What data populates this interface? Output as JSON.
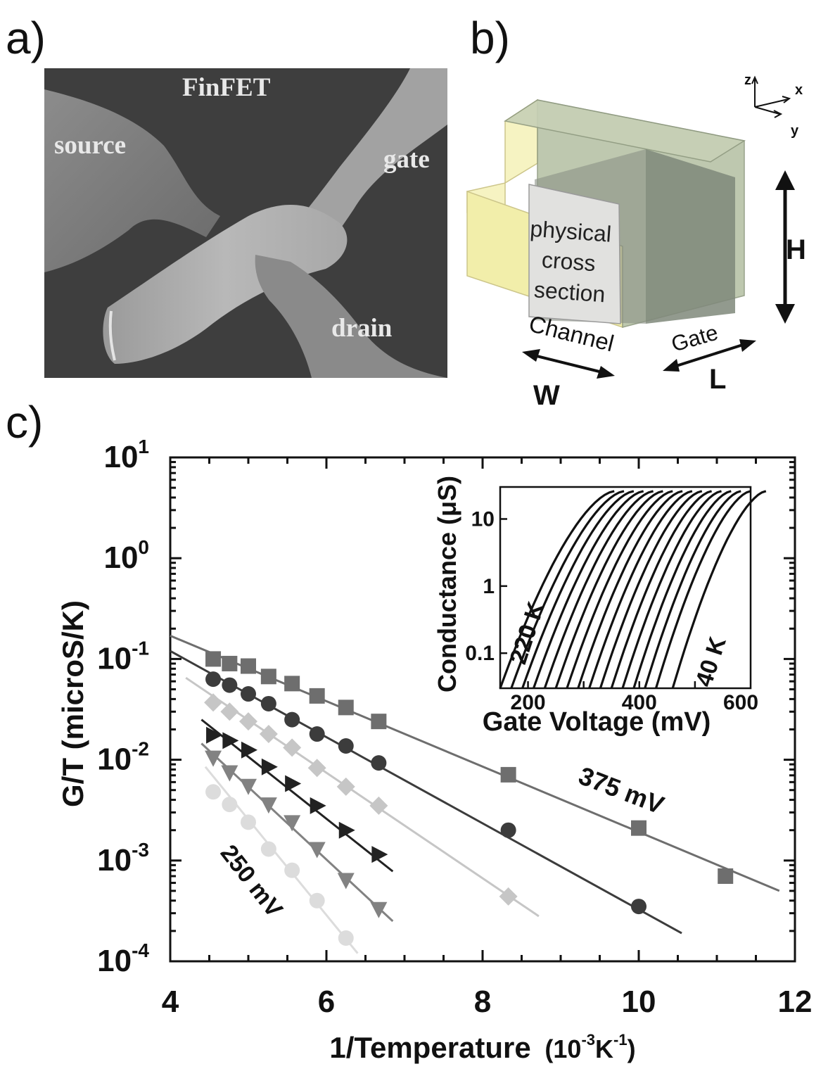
{
  "panels": {
    "a": {
      "label": "a)",
      "title": "FinFET",
      "labels": {
        "source": "source",
        "gate": "gate",
        "drain": "drain"
      }
    },
    "b": {
      "label": "b)",
      "axes": {
        "z": "z",
        "x": "x",
        "y": "y"
      },
      "cross_section": [
        "physical",
        "cross",
        "section"
      ],
      "channel": "Channel",
      "gate": "Gate",
      "dims": {
        "H": "H",
        "W": "W",
        "L": "L"
      }
    },
    "c": {
      "label": "c)"
    }
  },
  "colors": {
    "s375": "#6e6e6e",
    "s_circle": "#3c3c3c",
    "s_diamond": "#c6c6c6",
    "s_triangle_right": "#222222",
    "s_triangle_down": "#828282",
    "s250": "#dcdcdc",
    "yellow_face": "#f3efb4",
    "green_face": "#b9c4a9",
    "sem_bg": "#3c3c3c"
  },
  "chart_data": [
    {
      "type": "scatter",
      "xlabel": "1/Temperature",
      "xunit_base": "(10",
      "xunit_exp1": "-3",
      "xunit_mid": "K",
      "xunit_exp2": "-1",
      "xunit_end": ")",
      "ylabel": "G/T (microS/K)",
      "xlim": [
        4,
        12
      ],
      "ylim": [
        0.0001,
        10
      ],
      "yscale": "log",
      "xticks": [
        4,
        6,
        8,
        10,
        12
      ],
      "xtick_labels": [
        "4",
        "6",
        "8",
        "10",
        "12"
      ],
      "yticks": [
        {
          "base": "10",
          "exp": "1",
          "value": 10
        },
        {
          "base": "10",
          "exp": "0",
          "value": 1
        },
        {
          "base": "10",
          "exp": "-1",
          "value": 0.1
        },
        {
          "base": "10",
          "exp": "-2",
          "value": 0.01
        },
        {
          "base": "10",
          "exp": "-3",
          "value": 0.001
        },
        {
          "base": "10",
          "exp": "-4",
          "value": 0.0001
        }
      ],
      "annotations": [
        "375 mV",
        "250 mV"
      ],
      "series": [
        {
          "name": "375 mV",
          "marker": "square",
          "color_key": "s375",
          "x": [
            4.55,
            4.76,
            5.0,
            5.26,
            5.56,
            5.88,
            6.25,
            6.67,
            8.33,
            10.0,
            11.11
          ],
          "y": [
            0.1,
            0.09,
            0.085,
            0.067,
            0.057,
            0.043,
            0.033,
            0.024,
            0.0071,
            0.0021,
            0.0007
          ],
          "fit_x": [
            4.0,
            11.8
          ],
          "fit_y": [
            0.17,
            0.0005
          ]
        },
        {
          "marker": "circle",
          "color_key": "s_circle",
          "x": [
            4.55,
            4.76,
            5.0,
            5.26,
            5.56,
            5.88,
            6.25,
            6.67,
            8.33,
            10.0
          ],
          "y": [
            0.063,
            0.055,
            0.045,
            0.036,
            0.025,
            0.018,
            0.0137,
            0.0093,
            0.002,
            0.00035
          ],
          "fit_x": [
            4.0,
            10.55
          ],
          "fit_y": [
            0.12,
            0.00019
          ]
        },
        {
          "marker": "diamond",
          "color_key": "s_diamond",
          "x": [
            4.55,
            4.76,
            5.0,
            5.26,
            5.56,
            5.88,
            6.25,
            6.67,
            8.33
          ],
          "y": [
            0.037,
            0.03,
            0.024,
            0.018,
            0.0132,
            0.0083,
            0.0054,
            0.0035,
            0.00044
          ],
          "fit_x": [
            4.2,
            8.72
          ],
          "fit_y": [
            0.065,
            0.00028
          ]
        },
        {
          "marker": "triangle-right",
          "color_key": "s_triangle_right",
          "x": [
            4.55,
            4.76,
            5.0,
            5.26,
            5.56,
            5.88,
            6.25,
            6.67
          ],
          "y": [
            0.0175,
            0.0155,
            0.0125,
            0.0085,
            0.0058,
            0.0035,
            0.002,
            0.00115
          ],
          "fit_x": [
            4.4,
            6.85
          ],
          "fit_y": [
            0.025,
            0.00078
          ]
        },
        {
          "marker": "triangle-down",
          "color_key": "s_triangle_down",
          "x": [
            4.55,
            4.76,
            5.0,
            5.26,
            5.56,
            5.88,
            6.25,
            6.67
          ],
          "y": [
            0.0105,
            0.0075,
            0.0055,
            0.0036,
            0.0024,
            0.0013,
            0.00064,
            0.00033
          ],
          "fit_x": [
            4.4,
            6.85
          ],
          "fit_y": [
            0.0145,
            0.00025
          ]
        },
        {
          "name": "250 mV",
          "marker": "circle",
          "color_key": "s250",
          "x": [
            4.55,
            4.76,
            5.0,
            5.26,
            5.56,
            5.88,
            6.25
          ],
          "y": [
            0.0048,
            0.0036,
            0.0024,
            0.0013,
            0.0008,
            0.0004,
            0.00017
          ],
          "fit_x": [
            4.45,
            6.4
          ],
          "fit_y": [
            0.0085,
            0.00012
          ]
        }
      ]
    },
    {
      "type": "line",
      "xlabel": "Gate Voltage (mV)",
      "ylabel": "Conductance (μS)",
      "xlim": [
        150,
        600
      ],
      "ylim": [
        0.03,
        30
      ],
      "yscale": "log",
      "xtick_labels": [
        "200",
        "400",
        "600"
      ],
      "ytick_labels": [
        "10",
        "1",
        "0.1"
      ],
      "ytick_values": [
        10,
        1,
        0.1
      ],
      "annotations": [
        "220 K",
        "40 K"
      ],
      "curve_count": 16,
      "curve_start_voltages_mV": [
        150,
        170,
        190,
        210,
        230,
        250,
        270,
        290,
        310,
        330,
        350,
        370,
        390,
        410,
        430,
        460
      ],
      "curve_y_start": 0.03,
      "curve_y_end": 26
    }
  ]
}
